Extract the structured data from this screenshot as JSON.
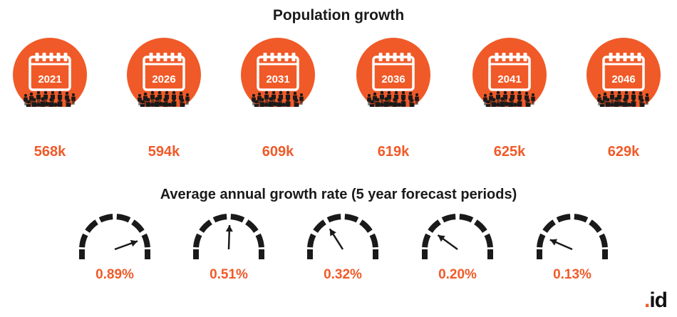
{
  "title": "Population growth",
  "subtitle": "Average annual growth rate (5 year forecast periods)",
  "colors": {
    "accent": "#f05a28",
    "dark": "#1a1a1a"
  },
  "icons": {
    "calendar": "calendar-icon",
    "crowd": "crowd-icon",
    "gauge": "gauge-icon"
  },
  "brand": {
    "text": ".id"
  },
  "chart_data": [
    {
      "type": "table",
      "title": "Population growth",
      "categories": [
        "2021",
        "2026",
        "2031",
        "2036",
        "2041",
        "2046"
      ],
      "values": [
        568,
        594,
        609,
        619,
        625,
        629
      ],
      "value_labels": [
        "568k",
        "594k",
        "609k",
        "619k",
        "625k",
        "629k"
      ],
      "unit": "k"
    },
    {
      "type": "table",
      "title": "Average annual growth rate (5 year forecast periods)",
      "values": [
        0.89,
        0.51,
        0.32,
        0.2,
        0.13
      ],
      "value_labels": [
        "0.89%",
        "0.51%",
        "0.32%",
        "0.20%",
        "0.13%"
      ],
      "unit": "%"
    }
  ]
}
